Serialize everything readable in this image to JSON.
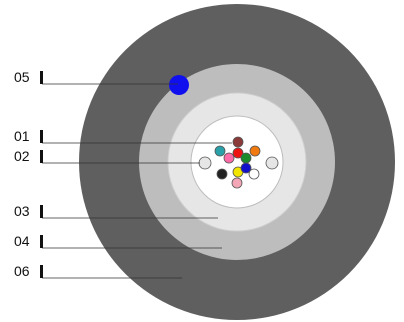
{
  "diagram": {
    "callouts": [
      {
        "id": "05",
        "label": "05"
      },
      {
        "id": "01",
        "label": "01"
      },
      {
        "id": "02",
        "label": "02"
      },
      {
        "id": "03",
        "label": "03"
      },
      {
        "id": "04",
        "label": "04"
      },
      {
        "id": "06",
        "label": "06"
      }
    ],
    "layers": [
      {
        "id": "outer-sheath",
        "color": "#5f5f5f"
      },
      {
        "id": "layer-04",
        "color": "#bdbdbd"
      },
      {
        "id": "layer-03",
        "color": "#e6e6e6"
      },
      {
        "id": "core-area",
        "color": "#ffffff"
      }
    ],
    "accent_dot_color": "#1010ee",
    "fiber_colors": [
      "#8b3a3a",
      "#2aa0a8",
      "#ff6aa8",
      "#ee1111",
      "#f07a10",
      "#1a8a2a",
      "#222222",
      "#f2e600",
      "#1111cc",
      "#ffffff",
      "#f2a6b6",
      "#e6e6e6",
      "#e6e6e6"
    ]
  }
}
